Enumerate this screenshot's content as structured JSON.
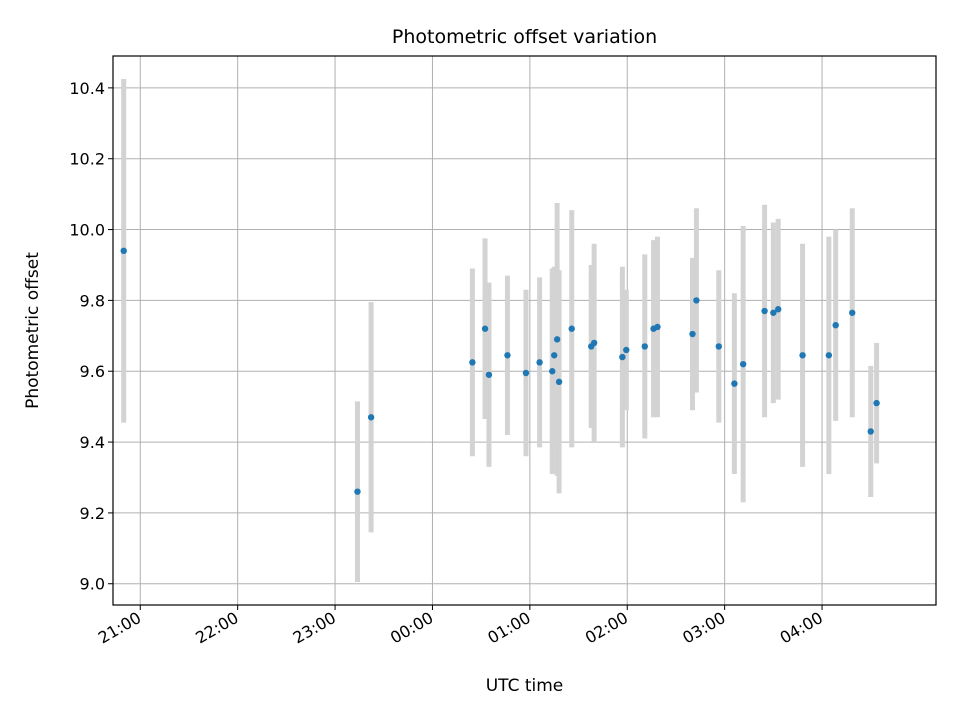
{
  "chart_data": {
    "type": "scatter",
    "title": "Photometric offset variation",
    "xlabel": "UTC time",
    "ylabel": "Photometric offset",
    "x_axis": {
      "unit": "hours",
      "min": 20.72,
      "max": 29.17
    },
    "ylim": [
      8.94,
      10.49
    ],
    "grid": true,
    "error_bars": true,
    "colors": {
      "point": "#1f77b4",
      "error_bar": "#d3d3d3",
      "grid": "#b0b0b0",
      "frame": "#000000"
    },
    "x_ticks": [
      {
        "value": 21,
        "label": "21:00"
      },
      {
        "value": 22,
        "label": "22:00"
      },
      {
        "value": 23,
        "label": "23:00"
      },
      {
        "value": 24,
        "label": "00:00"
      },
      {
        "value": 25,
        "label": "01:00"
      },
      {
        "value": 26,
        "label": "02:00"
      },
      {
        "value": 27,
        "label": "03:00"
      },
      {
        "value": 28,
        "label": "04:00"
      }
    ],
    "y_ticks": [
      {
        "value": 9.0,
        "label": "9.0"
      },
      {
        "value": 9.2,
        "label": "9.2"
      },
      {
        "value": 9.4,
        "label": "9.4"
      },
      {
        "value": 9.6,
        "label": "9.6"
      },
      {
        "value": 9.8,
        "label": "9.8"
      },
      {
        "value": 10.0,
        "label": "10.0"
      },
      {
        "value": 10.2,
        "label": "10.2"
      },
      {
        "value": 10.4,
        "label": "10.4"
      }
    ],
    "points": [
      {
        "x": 20.83,
        "y": 9.94,
        "err": 0.485
      },
      {
        "x": 23.23,
        "y": 9.26,
        "err": 0.255
      },
      {
        "x": 23.37,
        "y": 9.47,
        "err": 0.325
      },
      {
        "x": 24.41,
        "y": 9.625,
        "err": 0.265
      },
      {
        "x": 24.54,
        "y": 9.72,
        "err": 0.255
      },
      {
        "x": 24.58,
        "y": 9.59,
        "err": 0.26
      },
      {
        "x": 24.77,
        "y": 9.645,
        "err": 0.225
      },
      {
        "x": 24.96,
        "y": 9.595,
        "err": 0.235
      },
      {
        "x": 25.1,
        "y": 9.625,
        "err": 0.24
      },
      {
        "x": 25.23,
        "y": 9.6,
        "err": 0.29
      },
      {
        "x": 25.25,
        "y": 9.645,
        "err": 0.25
      },
      {
        "x": 25.28,
        "y": 9.69,
        "err": 0.385
      },
      {
        "x": 25.3,
        "y": 9.57,
        "err": 0.315
      },
      {
        "x": 25.43,
        "y": 9.72,
        "err": 0.335
      },
      {
        "x": 25.63,
        "y": 9.67,
        "err": 0.23
      },
      {
        "x": 25.66,
        "y": 9.68,
        "err": 0.28
      },
      {
        "x": 25.95,
        "y": 9.64,
        "err": 0.255
      },
      {
        "x": 25.99,
        "y": 9.66,
        "err": 0.17
      },
      {
        "x": 26.18,
        "y": 9.67,
        "err": 0.26
      },
      {
        "x": 26.27,
        "y": 9.72,
        "err": 0.25
      },
      {
        "x": 26.31,
        "y": 9.725,
        "err": 0.255
      },
      {
        "x": 26.67,
        "y": 9.705,
        "err": 0.215
      },
      {
        "x": 26.71,
        "y": 9.8,
        "err": 0.26
      },
      {
        "x": 26.94,
        "y": 9.67,
        "err": 0.215
      },
      {
        "x": 27.1,
        "y": 9.565,
        "err": 0.255
      },
      {
        "x": 27.19,
        "y": 9.62,
        "err": 0.39
      },
      {
        "x": 27.41,
        "y": 9.77,
        "err": 0.3
      },
      {
        "x": 27.5,
        "y": 9.765,
        "err": 0.255
      },
      {
        "x": 27.55,
        "y": 9.775,
        "err": 0.255
      },
      {
        "x": 27.8,
        "y": 9.645,
        "err": 0.315
      },
      {
        "x": 28.07,
        "y": 9.645,
        "err": 0.335
      },
      {
        "x": 28.14,
        "y": 9.73,
        "err": 0.27
      },
      {
        "x": 28.31,
        "y": 9.765,
        "err": 0.295
      },
      {
        "x": 28.5,
        "y": 9.43,
        "err": 0.185
      },
      {
        "x": 28.56,
        "y": 9.51,
        "err": 0.17
      }
    ]
  }
}
